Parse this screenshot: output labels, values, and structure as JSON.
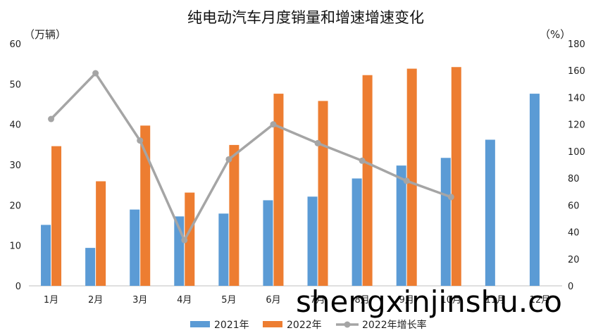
{
  "watermark": "shengxinjinshu.co",
  "chart_data": {
    "type": "bar",
    "title": "纯电动汽车月度销量和增速增速变化",
    "ylabel_left": "（万辆）",
    "ylabel_right": "（%）",
    "categories": [
      "1月",
      "2月",
      "3月",
      "4月",
      "5月",
      "6月",
      "7月",
      "8月",
      "9月",
      "10月",
      "11月",
      "12月"
    ],
    "left_axis": {
      "ylim": [
        0,
        60
      ],
      "ticks": [
        0,
        10,
        20,
        30,
        40,
        50,
        60
      ]
    },
    "right_axis": {
      "ylim": [
        0,
        180
      ],
      "ticks": [
        0,
        20,
        40,
        60,
        80,
        100,
        120,
        140,
        160,
        180
      ]
    },
    "grid": false,
    "legend_position": "bottom",
    "series": [
      {
        "name": "2021年",
        "type": "bar",
        "axis": "left",
        "color": "#5b9bd5",
        "values": [
          15.1,
          9.4,
          18.9,
          17.2,
          17.9,
          21.2,
          22.1,
          26.6,
          29.8,
          31.7,
          36.2,
          47.6
        ]
      },
      {
        "name": "2022年",
        "type": "bar",
        "axis": "left",
        "color": "#ed7d31",
        "values": [
          34.6,
          25.9,
          39.7,
          23.1,
          34.9,
          47.6,
          45.8,
          52.2,
          53.8,
          54.2,
          null,
          null
        ]
      },
      {
        "name": "2022年增长率",
        "type": "line",
        "axis": "right",
        "color": "#a5a5a5",
        "values": [
          124,
          158,
          108,
          34,
          94,
          120,
          106,
          93,
          78,
          66,
          null,
          null
        ]
      }
    ]
  }
}
